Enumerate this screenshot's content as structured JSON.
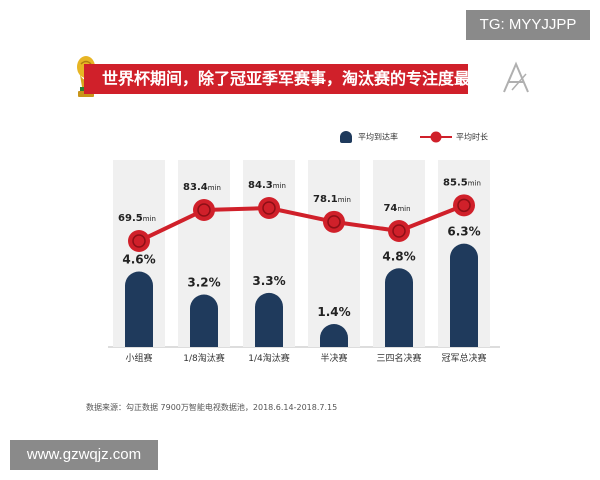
{
  "watermarks": {
    "top": "TG: MYYJJPP",
    "bottom": "www.gzwqjz.com"
  },
  "title": "世界杯期间，除了冠亚季军赛事，淘汰赛的专注度最高",
  "legend": {
    "bar_label": "平均到达率",
    "line_label": "平均时长"
  },
  "source": "数据来源：勾正数据 7900万智能电视数据池，2018.6.14-2018.7.15",
  "colors": {
    "bar": "#1f3a5c",
    "line": "#d0202a",
    "column_bg": "#f0f0f0",
    "banner": "#d0202a"
  },
  "chart_data": {
    "type": "bar",
    "title": "世界杯期间，除了冠亚季军赛事，淘汰赛的专注度最高",
    "categories": [
      "小组赛",
      "1/8淘汰赛",
      "1/4淘汰赛",
      "半决赛",
      "三四名决赛",
      "冠军总决赛"
    ],
    "series": [
      {
        "name": "平均到达率",
        "type": "bar",
        "values": [
          4.6,
          3.2,
          3.3,
          1.4,
          4.8,
          6.3
        ],
        "labels": [
          "4.6%",
          "3.2%",
          "3.3%",
          "1.4%",
          "4.8%",
          "6.3%"
        ],
        "unit": "%"
      },
      {
        "name": "平均时长",
        "type": "line",
        "values": [
          69.5,
          83.4,
          84.3,
          78.1,
          74,
          85.5
        ],
        "labels": [
          "69.5",
          "83.4",
          "84.3",
          "78.1",
          "74",
          "85.5"
        ],
        "unit": "min"
      }
    ],
    "legend_position": "top-right",
    "grid": false
  }
}
